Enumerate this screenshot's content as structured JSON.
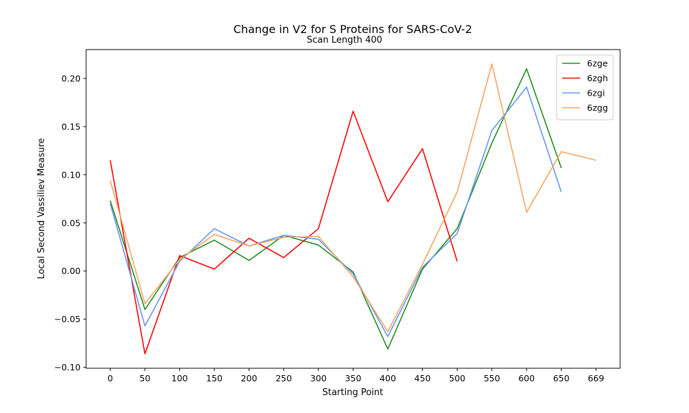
{
  "chart_data": {
    "type": "line",
    "title": "Change in V2 for S Proteins for SARS-CoV-2",
    "subtitle": "Scan Length 400",
    "xlabel": "Starting Point",
    "ylabel": "Local Second Vassiliev Measure",
    "x": [
      0,
      50,
      100,
      150,
      200,
      250,
      300,
      350,
      400,
      450,
      500,
      550,
      600,
      650,
      669
    ],
    "x_tick_labels": [
      "0",
      "50",
      "100",
      "150",
      "200",
      "250",
      "300",
      "350",
      "400",
      "450",
      "500",
      "550",
      "600",
      "650",
      "669"
    ],
    "y_ticks": [
      -0.1,
      -0.05,
      0.0,
      0.05,
      0.1,
      0.15,
      0.2
    ],
    "y_tick_labels": [
      "−0.10",
      "−0.05",
      "0.00",
      "0.05",
      "0.10",
      "0.15",
      "0.20"
    ],
    "ylim": [
      -0.101,
      0.23
    ],
    "grid": false,
    "legend_position": "top-right",
    "series": [
      {
        "name": "6zge",
        "color": "#228B22",
        "x": [
          0,
          50,
          100,
          150,
          200,
          250,
          300,
          350,
          400,
          450,
          500,
          550,
          600,
          650
        ],
        "values": [
          0.073,
          -0.04,
          0.014,
          0.032,
          0.011,
          0.037,
          0.027,
          -0.001,
          -0.081,
          0.002,
          0.044,
          0.133,
          0.21,
          0.107
        ]
      },
      {
        "name": "6zgh",
        "color": "#FF0000",
        "x": [
          0,
          50,
          100,
          150,
          200,
          250,
          300,
          350,
          400,
          450,
          500
        ],
        "values": [
          0.115,
          -0.086,
          0.016,
          0.002,
          0.034,
          0.014,
          0.044,
          0.166,
          0.072,
          0.127,
          0.01
        ]
      },
      {
        "name": "6zgi",
        "color": "#6495ED",
        "x": [
          0,
          50,
          100,
          150,
          200,
          250,
          300,
          350,
          400,
          450,
          500,
          550,
          600,
          650
        ],
        "values": [
          0.07,
          -0.057,
          0.01,
          0.044,
          0.026,
          0.037,
          0.033,
          -0.003,
          -0.068,
          0.004,
          0.039,
          0.146,
          0.191,
          0.082
        ]
      },
      {
        "name": "6zgg",
        "color": "#F4A460",
        "x": [
          0,
          50,
          100,
          150,
          200,
          250,
          300,
          350,
          400,
          450,
          500,
          550,
          600,
          650,
          669
        ],
        "values": [
          0.094,
          -0.034,
          0.012,
          0.038,
          0.026,
          0.035,
          0.036,
          -0.006,
          -0.063,
          0.007,
          0.082,
          0.215,
          0.061,
          0.124,
          0.115
        ]
      }
    ]
  }
}
